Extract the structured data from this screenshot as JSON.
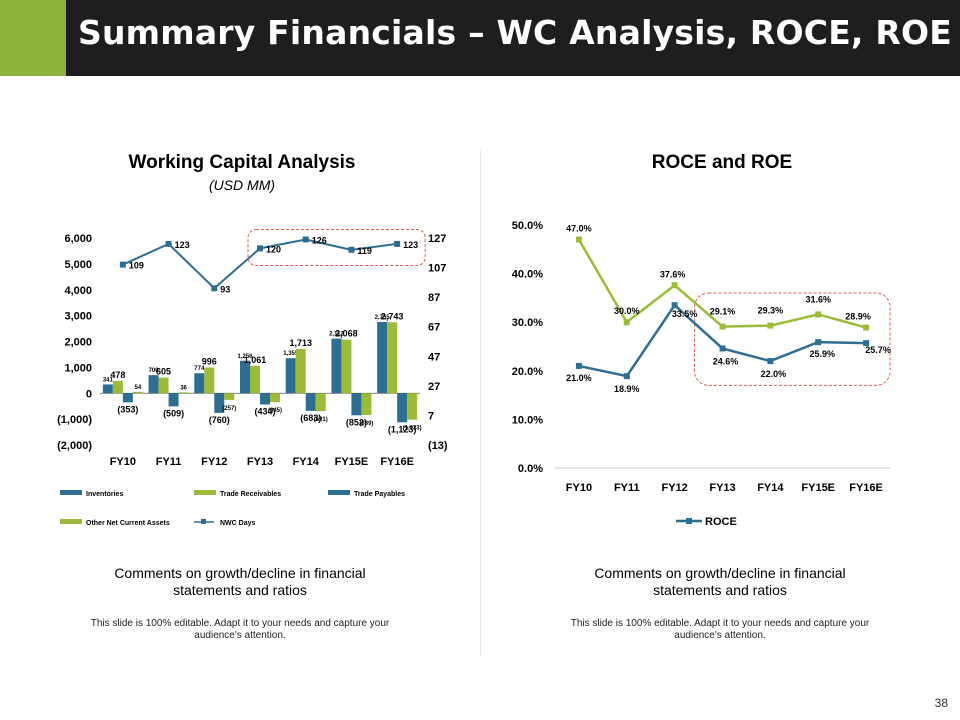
{
  "header": {
    "title": "Summary Financials – WC Analysis, ROCE, ROE"
  },
  "left_panel": {
    "title": "Working Capital Analysis",
    "subtitle": "(USD MM)",
    "comment": "Comments on growth/decline in financial statements and ratios",
    "note": "This slide is 100% editable. Adapt it to your needs and capture your audience's attention."
  },
  "right_panel": {
    "title": "ROCE and ROE",
    "comment": "Comments on growth/decline in financial statements and ratios",
    "note": "This slide is 100% editable. Adapt it to your needs and capture your audience's attention."
  },
  "page_number": "38",
  "colors": {
    "dark_blue": "#2E6E90",
    "green": "#9DBB3A",
    "accent": "#8DB13A",
    "title_bg": "#1E1E1E",
    "highlight": "#E05A4E"
  },
  "chart_data": [
    {
      "type": "bar",
      "title": "Working Capital Analysis",
      "subtitle": "(USD MM)",
      "categories": [
        "FY10",
        "FY11",
        "FY12",
        "FY13",
        "FY14",
        "FY15E",
        "FY16E"
      ],
      "series": [
        {
          "name": "Inventories",
          "values": [
            341,
            700,
            774,
            1256,
            1355,
            2112,
            2755
          ],
          "labels": [
            "341",
            "700",
            "774",
            "1,256",
            "1,355",
            "2,112",
            "2,755"
          ]
        },
        {
          "name": "Trade Receivables",
          "values": [
            478,
            605,
            996,
            1061,
            1713,
            2068,
            2743
          ],
          "labels": [
            "478",
            "605",
            "996",
            "1,061",
            "1,713",
            "2,068",
            "2,743"
          ]
        },
        {
          "name": "Trade Payables",
          "values": [
            -353,
            -509,
            -760,
            -434,
            -683,
            -852,
            -1123
          ],
          "labels": [
            "(353)",
            "(509)",
            "(760)",
            "(434)",
            "(683)",
            "(852)",
            "(1,123)"
          ]
        },
        {
          "name": "Other Net Current Assets",
          "values": [
            54,
            36,
            -257,
            -345,
            -691,
            -839,
            -1023
          ],
          "labels": [
            "54",
            "36",
            "(257)",
            "(345)",
            "(691)",
            "(839)",
            "(1,023)"
          ]
        },
        {
          "name": "NWC Days",
          "axis": "right",
          "type": "line",
          "values": [
            109,
            123,
            93,
            120,
            126,
            119,
            123
          ],
          "labels": [
            "109",
            "123",
            "93",
            "120",
            "126",
            "119",
            "123"
          ]
        }
      ],
      "ylim": [
        -2000,
        6000
      ],
      "yticks": [
        "6,000",
        "5,000",
        "4,000",
        "3,000",
        "2,000",
        "1,000",
        "0",
        "(1,000)",
        "(2,000)"
      ],
      "y2lim": [
        -13,
        127
      ],
      "y2ticks": [
        "127",
        "107",
        "87",
        "67",
        "47",
        "27",
        "7",
        "(13)"
      ],
      "legend": [
        "Inventories",
        "Trade Receivables",
        "Trade Payables",
        "Other Net Current Assets",
        "NWC Days"
      ],
      "highlight": "FY13 to FY16E NWC Days"
    },
    {
      "type": "line",
      "title": "ROCE and ROE",
      "categories": [
        "FY10",
        "FY11",
        "FY12",
        "FY13",
        "FY14",
        "FY15E",
        "FY16E"
      ],
      "series": [
        {
          "name": "ROE",
          "values": [
            47.0,
            30.0,
            37.6,
            29.1,
            29.3,
            31.6,
            28.9
          ],
          "labels": [
            "47.0%",
            "30.0%",
            "37.6%",
            "29.1%",
            "29.3%",
            "31.6%",
            "28.9%"
          ]
        },
        {
          "name": "ROCE",
          "values": [
            21.0,
            18.9,
            33.5,
            24.6,
            22.0,
            25.9,
            25.7
          ],
          "labels": [
            "21.0%",
            "18.9%",
            "33.5%",
            "24.6%",
            "22.0%",
            "25.9%",
            "25.7%"
          ]
        }
      ],
      "ylim": [
        0,
        50
      ],
      "yticks": [
        "50.0%",
        "40.0%",
        "30.0%",
        "20.0%",
        "10.0%",
        "0.0%"
      ],
      "legend": [
        "ROCE"
      ],
      "highlight": "FY13 to FY16E"
    }
  ]
}
